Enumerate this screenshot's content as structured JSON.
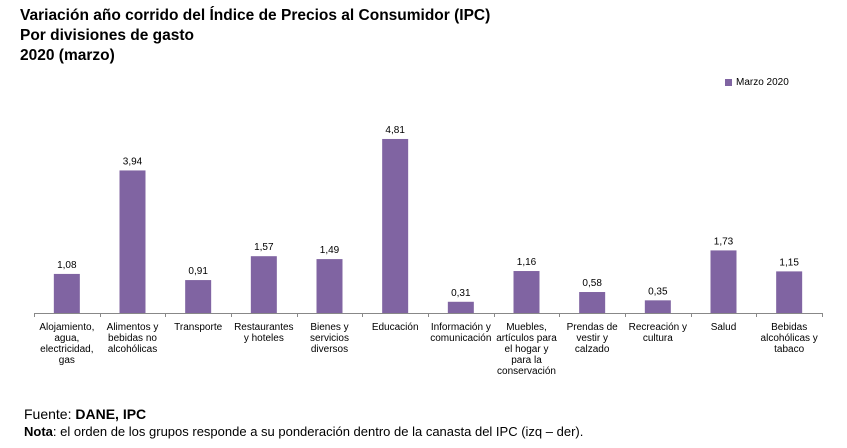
{
  "title": {
    "line1": "Variación año corrido del Índice de Precios al Consumidor (IPC)",
    "line2": "Por divisiones de gasto",
    "line3": "2020 (marzo)"
  },
  "footer": {
    "source_label": "Fuente: ",
    "source_value": "DANE, IPC",
    "note_label": "Nota",
    "note_text": ": el orden de los grupos responde a su ponderación dentro de la canasta del IPC (izq – der)."
  },
  "colors": {
    "bar": "#8064a2",
    "axis": "#888888"
  },
  "chart_data": {
    "type": "bar",
    "categories": [
      [
        "Alojamiento,",
        "agua,",
        "electricidad,",
        "gas"
      ],
      [
        "Alimentos y",
        "bebidas no",
        "alcohólicas"
      ],
      [
        "Transporte"
      ],
      [
        "Restaurantes",
        "y hoteles"
      ],
      [
        "Bienes y",
        "servicios",
        "diversos"
      ],
      [
        "Educación"
      ],
      [
        "Información y",
        "comunicación"
      ],
      [
        "Muebles,",
        "artículos para",
        "el hogar y",
        "para la",
        "conservación"
      ],
      [
        "Prendas de",
        "vestir y",
        "calzado"
      ],
      [
        "Recreación y",
        "cultura"
      ],
      [
        "Salud"
      ],
      [
        "Bebidas",
        "alcohólicas y",
        "tabaco"
      ]
    ],
    "series": [
      {
        "name": "Marzo 2020",
        "values": [
          1.08,
          3.94,
          0.91,
          1.57,
          1.49,
          4.81,
          0.31,
          1.16,
          0.58,
          0.35,
          1.73,
          1.15
        ],
        "labels": [
          "1,08",
          "3,94",
          "0,91",
          "1,57",
          "1,49",
          "4,81",
          "0,31",
          "1,16",
          "0,58",
          "0,35",
          "1,73",
          "1,15"
        ]
      }
    ],
    "ylim": [
      0,
      5.5
    ],
    "legend_position": "top-right",
    "grid": false
  }
}
